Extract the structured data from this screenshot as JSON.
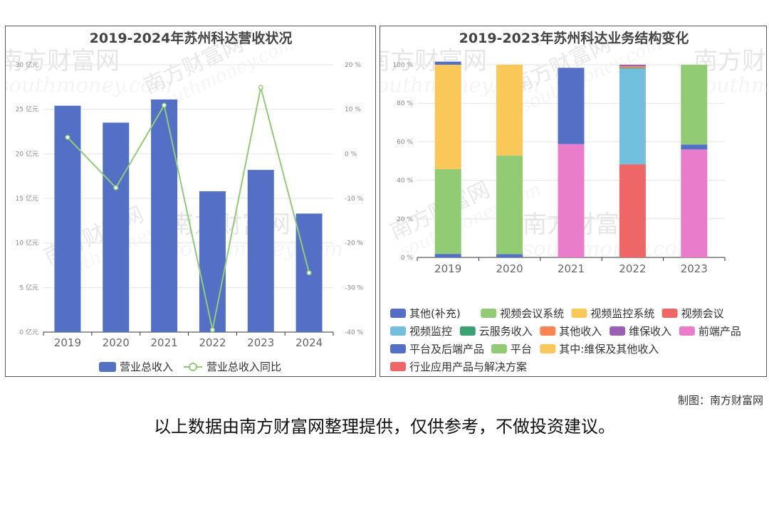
{
  "chart_data": [
    {
      "type": "bar+line",
      "title": "2019-2024年苏州科达营收状况",
      "categories": [
        "2019",
        "2020",
        "2021",
        "2022",
        "2023",
        "2024"
      ],
      "series": [
        {
          "name": "营业总收入",
          "type": "bar",
          "axis": "left",
          "values": [
            25.4,
            23.5,
            26.1,
            15.8,
            18.2,
            13.3
          ]
        },
        {
          "name": "营业总收入同比",
          "type": "line",
          "axis": "right",
          "values": [
            3.7,
            -7.6,
            10.9,
            -39.5,
            14.9,
            -26.7
          ]
        }
      ],
      "left_axis": {
        "ylim": [
          0,
          30
        ],
        "ticks": [
          0,
          5,
          10,
          15,
          20,
          25,
          30
        ],
        "unit": "亿元",
        "tick_labels": [
          "0 亿元",
          "5 亿元",
          "10 亿元",
          "15 亿元",
          "20 亿元",
          "25 亿元",
          "30 亿元"
        ]
      },
      "right_axis": {
        "ylim": [
          -40,
          20
        ],
        "ticks": [
          -40,
          -30,
          -20,
          -10,
          0,
          10,
          20
        ],
        "tick_labels": [
          "-40 %",
          "-30 %",
          "-20 %",
          "-10 %",
          "0 %",
          "10 %",
          "20 %"
        ]
      },
      "legend": {
        "placement": "bottom",
        "entries": [
          "营业总收入",
          "营业总收入同比"
        ]
      },
      "grid": true,
      "colors": {
        "bar": "#5470c6",
        "line": "#91cc75"
      }
    },
    {
      "type": "stacked-bar",
      "title": "2019-2023年苏州科达业务结构变化",
      "categories": [
        "2019",
        "2020",
        "2021",
        "2022",
        "2023"
      ],
      "ylim": [
        0,
        100
      ],
      "ticks": [
        0,
        20,
        40,
        60,
        80,
        100
      ],
      "tick_labels": [
        "0 %",
        "20 %",
        "40 %",
        "60 %",
        "80 %",
        "100 %"
      ],
      "series": [
        {
          "name": "其他(补充)",
          "color": "#5470c6",
          "values": [
            1.8,
            1.7,
            0,
            0,
            0
          ]
        },
        {
          "name": "视频会议系统",
          "color": "#91cc75",
          "values": [
            44.0,
            51.2,
            0,
            0,
            0
          ]
        },
        {
          "name": "视频监控系统",
          "color": "#fac858",
          "values": [
            54.2,
            47.1,
            0,
            0,
            0
          ]
        },
        {
          "name": "视频会议",
          "color": "#ee6666",
          "values": [
            0,
            0,
            0,
            48.3,
            0
          ]
        },
        {
          "name": "视频监控",
          "color": "#73c0de",
          "values": [
            0,
            0,
            0,
            49.7,
            0
          ]
        },
        {
          "name": "云服务收入",
          "color": "#3ba272",
          "values": [
            0,
            0,
            0,
            0.4,
            0
          ]
        },
        {
          "name": "其他收入",
          "color": "#fc8452",
          "values": [
            0,
            0,
            0,
            0.8,
            0
          ]
        },
        {
          "name": "维保收入",
          "color": "#9a60b4",
          "values": [
            0,
            0,
            0,
            0.8,
            0
          ]
        },
        {
          "name": "前端产品",
          "color": "#ea7ccc",
          "values": [
            0,
            0,
            58.8,
            0,
            56.0
          ]
        },
        {
          "name": "平台及后端产品",
          "color": "#5470c6",
          "values": [
            1.6,
            0,
            39.6,
            0,
            2.6
          ]
        },
        {
          "name": "平台",
          "color": "#91cc75",
          "values": [
            0,
            0,
            0,
            0,
            41.4
          ]
        },
        {
          "name": "其中:维保及其他收入",
          "color": "#fac858",
          "values": [
            0,
            0,
            0,
            0,
            0
          ]
        },
        {
          "name": "行业应用产品与解决方案",
          "color": "#ee6666",
          "values": [
            0,
            0,
            0,
            0,
            0
          ]
        }
      ],
      "legend": {
        "placement": "bottom"
      },
      "grid": true
    }
  ],
  "watermark": {
    "cn": "南方财富网",
    "en": "southmoney.com"
  },
  "footer": {
    "credit": "制图：南方财富网",
    "disclaimer": "以上数据由南方财富网整理提供，仅供参考，不做投资建议。"
  }
}
